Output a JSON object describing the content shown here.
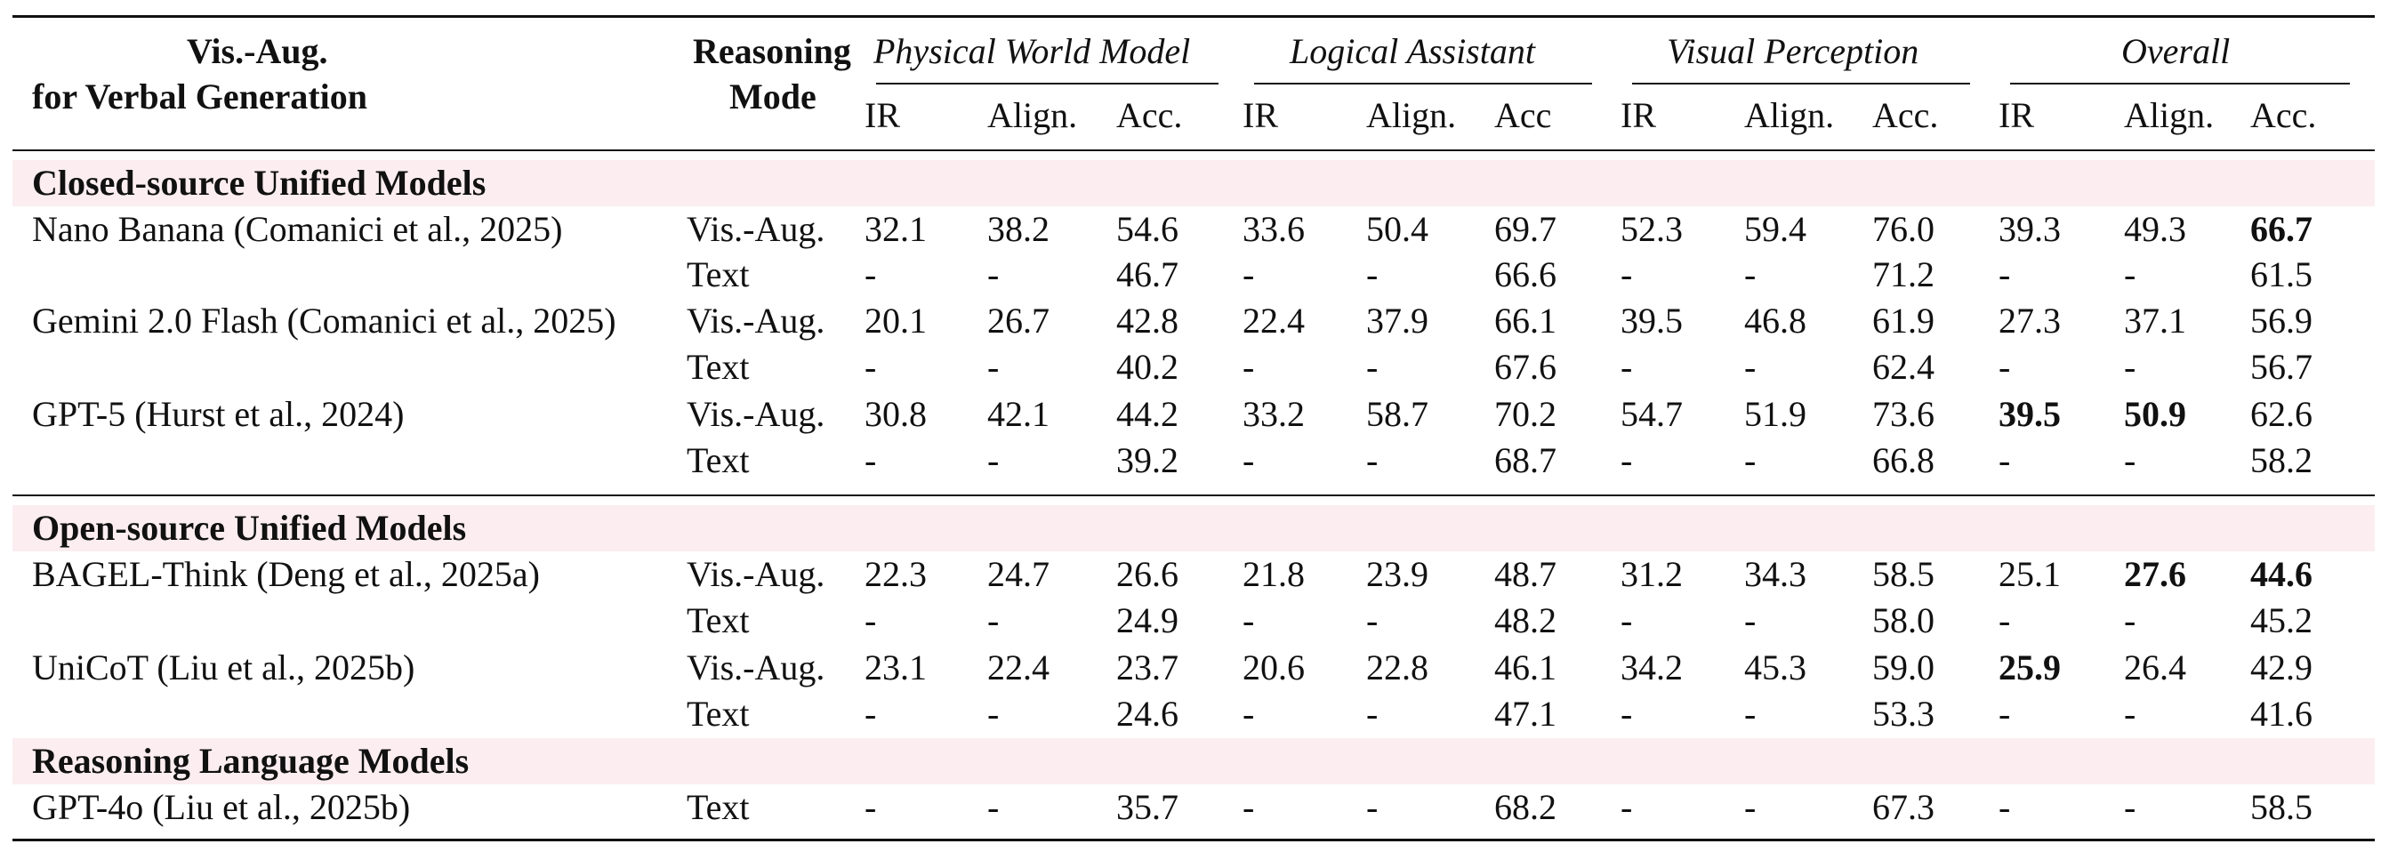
{
  "table": {
    "header": {
      "col1_line1": "Vis.-Aug.",
      "col1_line2": "for Verbal Generation",
      "col2_line1": "Reasoning",
      "col2_line2": "Mode",
      "groups": [
        "Physical World Model",
        "Logical Assistant",
        "Visual Perception",
        "Overall"
      ],
      "subcols": [
        [
          "IR",
          "Align.",
          "Acc."
        ],
        [
          "IR",
          "Align.",
          "Acc"
        ],
        [
          "IR",
          "Align.",
          "Acc."
        ],
        [
          "IR",
          "Align.",
          "Acc."
        ]
      ]
    },
    "sections": [
      {
        "title": "Closed-source Unified Models",
        "rows": [
          {
            "model": "Nano Banana (Comanici et al., 2025)",
            "mode": "Vis.-Aug.",
            "values": [
              "32.1",
              "38.2",
              "54.6",
              "33.6",
              "50.4",
              "69.7",
              "52.3",
              "59.4",
              "76.0",
              "39.3",
              "49.3",
              "66.7"
            ],
            "bold": [
              11
            ]
          },
          {
            "model": "",
            "mode": "Text",
            "values": [
              "-",
              "-",
              "46.7",
              "-",
              "-",
              "66.6",
              "-",
              "-",
              "71.2",
              "-",
              "-",
              "61.5"
            ],
            "bold": []
          },
          {
            "model": "Gemini 2.0 Flash (Comanici et al., 2025)",
            "mode": "Vis.-Aug.",
            "values": [
              "20.1",
              "26.7",
              "42.8",
              "22.4",
              "37.9",
              "66.1",
              "39.5",
              "46.8",
              "61.9",
              "27.3",
              "37.1",
              "56.9"
            ],
            "bold": []
          },
          {
            "model": "",
            "mode": "Text",
            "values": [
              "-",
              "-",
              "40.2",
              "-",
              "-",
              "67.6",
              "-",
              "-",
              "62.4",
              "-",
              "-",
              "56.7"
            ],
            "bold": []
          },
          {
            "model": "GPT-5 (Hurst et al., 2024)",
            "mode": "Vis.-Aug.",
            "values": [
              "30.8",
              "42.1",
              "44.2",
              "33.2",
              "58.7",
              "70.2",
              "54.7",
              "51.9",
              "73.6",
              "39.5",
              "50.9",
              "62.6"
            ],
            "bold": [
              9,
              10
            ]
          },
          {
            "model": "",
            "mode": "Text",
            "values": [
              "-",
              "-",
              "39.2",
              "-",
              "-",
              "68.7",
              "-",
              "-",
              "66.8",
              "-",
              "-",
              "58.2"
            ],
            "bold": []
          }
        ]
      },
      {
        "title": "Open-source Unified Models",
        "rows": [
          {
            "model": "BAGEL-Think (Deng et al., 2025a)",
            "mode": "Vis.-Aug.",
            "values": [
              "22.3",
              "24.7",
              "26.6",
              "21.8",
              "23.9",
              "48.7",
              "31.2",
              "34.3",
              "58.5",
              "25.1",
              "27.6",
              "44.6"
            ],
            "bold": [
              10,
              11
            ]
          },
          {
            "model": "",
            "mode": "Text",
            "values": [
              "-",
              "-",
              "24.9",
              "-",
              "-",
              "48.2",
              "-",
              "-",
              "58.0",
              "-",
              "-",
              "45.2"
            ],
            "bold": []
          },
          {
            "model": "UniCoT  (Liu et al., 2025b)",
            "mode": "Vis.-Aug.",
            "values": [
              "23.1",
              "22.4",
              "23.7",
              "20.6",
              "22.8",
              "46.1",
              "34.2",
              "45.3",
              "59.0",
              "25.9",
              "26.4",
              "42.9"
            ],
            "bold": [
              9
            ]
          },
          {
            "model": "",
            "mode": "Text",
            "values": [
              "-",
              "-",
              "24.6",
              "-",
              "-",
              "47.1",
              "-",
              "-",
              "53.3",
              "-",
              "-",
              "41.6"
            ],
            "bold": []
          }
        ]
      },
      {
        "title": "Reasoning Language Models",
        "rows": [
          {
            "model": "GPT-4o  (Liu et al., 2025b)",
            "mode": "Text",
            "values": [
              "-",
              "-",
              "35.7",
              "-",
              "-",
              "68.2",
              "-",
              "-",
              "67.3",
              "-",
              "-",
              "58.5"
            ],
            "bold": []
          }
        ]
      }
    ],
    "band_color": "#fbedf0"
  }
}
